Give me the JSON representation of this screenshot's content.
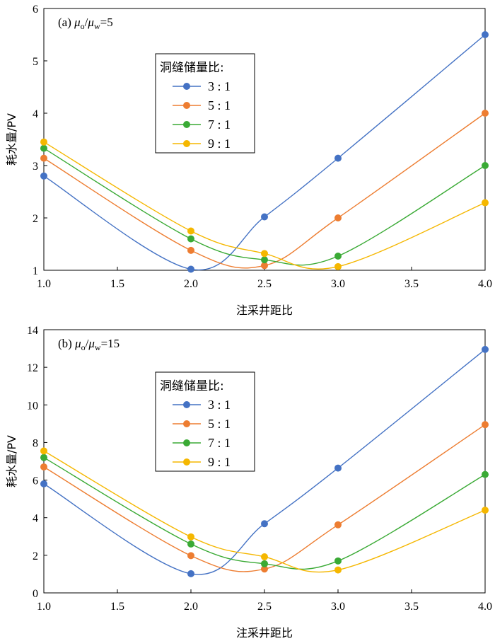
{
  "chart_data": [
    {
      "type": "line",
      "panel_label": "(a) μo/μw=5",
      "panel_label_parts": {
        "prefix": "(a) ",
        "mu": "μ",
        "sub_o": "o",
        "slash": "/",
        "sub_w": "w",
        "ratio": "=5"
      },
      "xlabel": "注采井距比",
      "ylabel": "耗水量/PV",
      "xlim": [
        1.0,
        4.0
      ],
      "ylim": [
        1,
        6
      ],
      "xticks": [
        "1.0",
        "1.5",
        "2.0",
        "2.5",
        "3.0",
        "3.5",
        "4.0"
      ],
      "yticks": [
        "1",
        "2",
        "3",
        "4",
        "5",
        "6"
      ],
      "legend_title": "洞缝储量比:",
      "x": [
        1.0,
        2.0,
        2.5,
        3.0,
        4.0
      ],
      "series": [
        {
          "name": "3:1",
          "label": "3 : 1",
          "color": "#4472C4",
          "values": [
            2.8,
            1.02,
            2.02,
            3.14,
            5.5
          ]
        },
        {
          "name": "5:1",
          "label": "5 : 1",
          "color": "#ED7D31",
          "values": [
            3.14,
            1.38,
            1.09,
            2.0,
            4.0
          ]
        },
        {
          "name": "7:1",
          "label": "7 : 1",
          "color": "#3AAA35",
          "values": [
            3.33,
            1.6,
            1.2,
            1.27,
            3.0
          ]
        },
        {
          "name": "9:1",
          "label": "9 : 1",
          "color": "#F5B700",
          "values": [
            3.45,
            1.75,
            1.32,
            1.07,
            2.29
          ]
        }
      ]
    },
    {
      "type": "line",
      "panel_label": "(b) μo/μw=15",
      "panel_label_parts": {
        "prefix": "(b) ",
        "mu": "μ",
        "sub_o": "o",
        "slash": "/",
        "sub_w": "w",
        "ratio": "=15"
      },
      "xlabel": "注采井距比",
      "ylabel": "耗水量/PV",
      "xlim": [
        1.0,
        4.0
      ],
      "ylim": [
        0,
        14
      ],
      "xticks": [
        "1.0",
        "1.5",
        "2.0",
        "2.5",
        "3.0",
        "3.5",
        "4.0"
      ],
      "yticks": [
        "0",
        "2",
        "4",
        "6",
        "8",
        "10",
        "12",
        "14"
      ],
      "legend_title": "洞缝储量比:",
      "x": [
        1.0,
        2.0,
        2.5,
        3.0,
        4.0
      ],
      "series": [
        {
          "name": "3:1",
          "label": "3 : 1",
          "color": "#4472C4",
          "values": [
            5.8,
            1.02,
            3.68,
            6.64,
            12.95
          ]
        },
        {
          "name": "5:1",
          "label": "5 : 1",
          "color": "#ED7D31",
          "values": [
            6.7,
            1.98,
            1.27,
            3.62,
            8.95
          ]
        },
        {
          "name": "7:1",
          "label": "7 : 1",
          "color": "#3AAA35",
          "values": [
            7.2,
            2.6,
            1.55,
            1.7,
            6.3
          ]
        },
        {
          "name": "9:1",
          "label": "9 : 1",
          "color": "#F5B700",
          "values": [
            7.55,
            2.98,
            1.92,
            1.22,
            4.4
          ]
        }
      ]
    }
  ]
}
